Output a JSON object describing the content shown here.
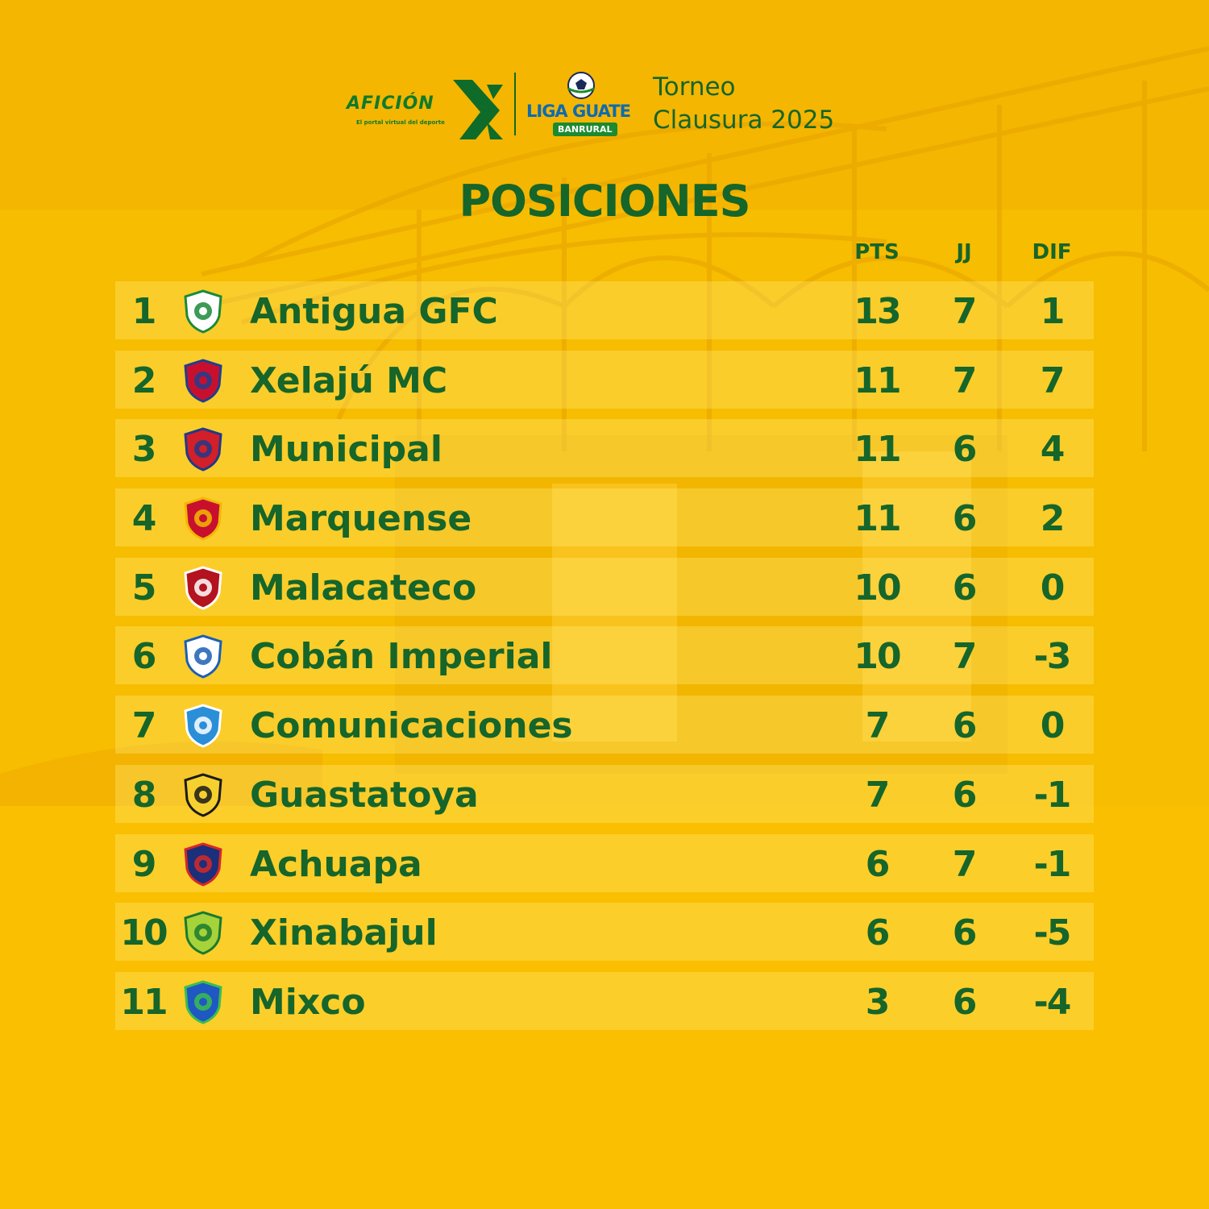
{
  "header": {
    "aficion_logo": "AFICIÓN",
    "aficion_tagline": "El portal virtual del deporte",
    "liga_logo": "LIGA GUATE",
    "liga_sponsor": "BANRURAL",
    "torneo_line1": "Torneo",
    "torneo_line2": "Clausura 2025"
  },
  "title": "POSICIONES",
  "columns": {
    "pts": "PTS",
    "jj": "JJ",
    "dif": "DIF"
  },
  "standings": [
    {
      "pos": "1",
      "team": "Antigua GFC",
      "pts": "13",
      "jj": "7",
      "dif": "1",
      "crest": "antigua-crest-icon",
      "colors": [
        "#ffffff",
        "#1a8a3a"
      ]
    },
    {
      "pos": "2",
      "team": "Xelajú MC",
      "pts": "11",
      "jj": "7",
      "dif": "7",
      "crest": "xelaju-crest-icon",
      "colors": [
        "#c8102e",
        "#1f3f8f"
      ]
    },
    {
      "pos": "3",
      "team": "Municipal",
      "pts": "11",
      "jj": "6",
      "dif": "4",
      "crest": "municipal-crest-icon",
      "colors": [
        "#d21f2a",
        "#1e3a8a"
      ]
    },
    {
      "pos": "4",
      "team": "Marquense",
      "pts": "11",
      "jj": "6",
      "dif": "2",
      "crest": "marquense-crest-icon",
      "colors": [
        "#c8102e",
        "#f2b705"
      ]
    },
    {
      "pos": "5",
      "team": "Malacateco",
      "pts": "10",
      "jj": "6",
      "dif": "0",
      "crest": "malacateco-crest-icon",
      "colors": [
        "#b3121f",
        "#ffffff"
      ]
    },
    {
      "pos": "6",
      "team": "Cobán Imperial",
      "pts": "10",
      "jj": "7",
      "dif": "-3",
      "crest": "coban-crest-icon",
      "colors": [
        "#ffffff",
        "#1c5fb5"
      ]
    },
    {
      "pos": "7",
      "team": "Comunicaciones",
      "pts": "7",
      "jj": "6",
      "dif": "0",
      "crest": "comunicaciones-crest-icon",
      "colors": [
        "#2a8fd8",
        "#ffffff"
      ]
    },
    {
      "pos": "8",
      "team": "Guastatoya",
      "pts": "7",
      "jj": "6",
      "dif": "-1",
      "crest": "guastatoya-crest-icon",
      "colors": [
        "#f6d12e",
        "#1a1a1a"
      ]
    },
    {
      "pos": "9",
      "team": "Achuapa",
      "pts": "6",
      "jj": "7",
      "dif": "-1",
      "crest": "achuapa-crest-icon",
      "colors": [
        "#1b2f7a",
        "#d62828"
      ]
    },
    {
      "pos": "10",
      "team": "Xinabajul",
      "pts": "6",
      "jj": "6",
      "dif": "-5",
      "crest": "xinabajul-crest-icon",
      "colors": [
        "#a6d23a",
        "#1a7a2e"
      ]
    },
    {
      "pos": "11",
      "team": "Mixco",
      "pts": "3",
      "jj": "6",
      "dif": "-4",
      "crest": "mixco-crest-icon",
      "colors": [
        "#1f57c3",
        "#3bbd4f"
      ]
    }
  ]
}
